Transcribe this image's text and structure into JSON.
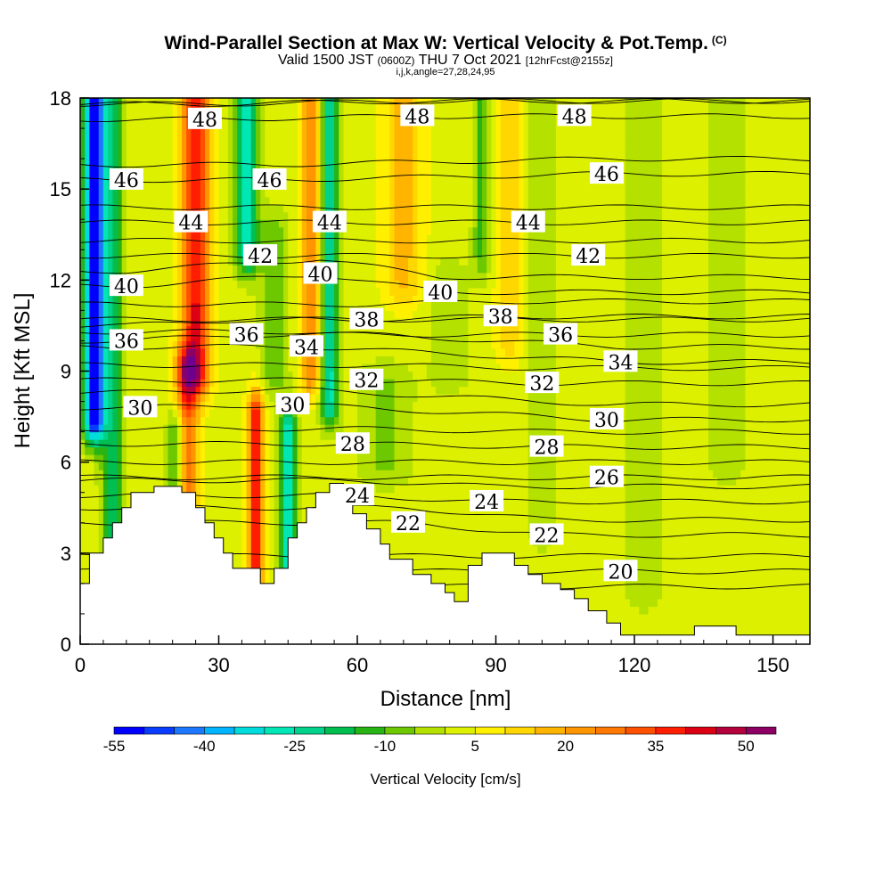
{
  "title": {
    "main": "Wind-Parallel Section at Max W: Vertical Velocity & Pot.Temp.",
    "copyright": "(C)",
    "sub_valid": "Valid 1500 JST",
    "sub_utc": "(0600Z)",
    "sub_date": "THU 7 Oct 2021",
    "sub_fcst": "[12hrFcst@2155z]",
    "indices": "i,j,k,angle=27,28,24,95"
  },
  "chart_data": {
    "type": "heatmap",
    "xlabel": "Distance [nm]",
    "ylabel": "Height [Kft MSL]",
    "xlim": [
      0,
      158
    ],
    "ylim": [
      0,
      18
    ],
    "x_ticks": [
      0,
      30,
      60,
      90,
      120,
      150
    ],
    "y_ticks": [
      0,
      3,
      6,
      9,
      12,
      15,
      18
    ],
    "colorbar": {
      "title": "Vertical Velocity [cm/s]",
      "levels": [
        -55,
        -50,
        -45,
        -40,
        -35,
        -30,
        -25,
        -20,
        -15,
        -10,
        -5,
        0,
        5,
        10,
        15,
        20,
        25,
        30,
        35,
        40,
        45,
        50,
        55
      ],
      "labels": [
        "-55",
        "-40",
        "-25",
        "-10",
        "5",
        "20",
        "35",
        "50"
      ],
      "colors": [
        "#0000ff",
        "#0a3cff",
        "#1e78ff",
        "#00b4ff",
        "#00dcdc",
        "#00e6b4",
        "#00d28c",
        "#00be50",
        "#28b414",
        "#6ec800",
        "#b4e100",
        "#dcf000",
        "#fff000",
        "#ffd700",
        "#ffb400",
        "#ff9600",
        "#ff7800",
        "#ff5000",
        "#ff1e00",
        "#dc0014",
        "#b4003c",
        "#8c0064",
        "#6e008c"
      ]
    },
    "theta_contour_labels": [
      {
        "v": 48,
        "x": 27,
        "y": 17.3
      },
      {
        "v": 48,
        "x": 73,
        "y": 17.4
      },
      {
        "v": 48,
        "x": 107,
        "y": 17.4
      },
      {
        "v": 46,
        "x": 10,
        "y": 15.3
      },
      {
        "v": 46,
        "x": 41,
        "y": 15.3
      },
      {
        "v": 46,
        "x": 114,
        "y": 15.5
      },
      {
        "v": 44,
        "x": 24,
        "y": 13.9
      },
      {
        "v": 44,
        "x": 54,
        "y": 13.9
      },
      {
        "v": 44,
        "x": 97,
        "y": 13.9
      },
      {
        "v": 42,
        "x": 39,
        "y": 12.8
      },
      {
        "v": 42,
        "x": 110,
        "y": 12.8
      },
      {
        "v": 40,
        "x": 10,
        "y": 11.8
      },
      {
        "v": 40,
        "x": 52,
        "y": 12.2
      },
      {
        "v": 40,
        "x": 78,
        "y": 11.6
      },
      {
        "v": 38,
        "x": 62,
        "y": 10.7
      },
      {
        "v": 38,
        "x": 91,
        "y": 10.8
      },
      {
        "v": 36,
        "x": 10,
        "y": 10.0
      },
      {
        "v": 36,
        "x": 36,
        "y": 10.2
      },
      {
        "v": 36,
        "x": 104,
        "y": 10.2
      },
      {
        "v": 34,
        "x": 49,
        "y": 9.8
      },
      {
        "v": 34,
        "x": 117,
        "y": 9.3
      },
      {
        "v": 32,
        "x": 62,
        "y": 8.7
      },
      {
        "v": 32,
        "x": 100,
        "y": 8.6
      },
      {
        "v": 30,
        "x": 13,
        "y": 7.8
      },
      {
        "v": 30,
        "x": 46,
        "y": 7.9
      },
      {
        "v": 30,
        "x": 114,
        "y": 7.4
      },
      {
        "v": 28,
        "x": 59,
        "y": 6.6
      },
      {
        "v": 28,
        "x": 101,
        "y": 6.5
      },
      {
        "v": 26,
        "x": 114,
        "y": 5.5
      },
      {
        "v": 24,
        "x": 60,
        "y": 4.9
      },
      {
        "v": 24,
        "x": 88,
        "y": 4.7
      },
      {
        "v": 22,
        "x": 71,
        "y": 4.0
      },
      {
        "v": 22,
        "x": 101,
        "y": 3.6
      },
      {
        "v": 20,
        "x": 117,
        "y": 2.4
      }
    ],
    "terrain_kft": [
      [
        0,
        2
      ],
      [
        2,
        2
      ],
      [
        2,
        3
      ],
      [
        5,
        3
      ],
      [
        5,
        3.5
      ],
      [
        7,
        3.5
      ],
      [
        7,
        4
      ],
      [
        9,
        4
      ],
      [
        9,
        4.5
      ],
      [
        11,
        4.5
      ],
      [
        11,
        5
      ],
      [
        16,
        5
      ],
      [
        16,
        5.2
      ],
      [
        22,
        5.2
      ],
      [
        22,
        5
      ],
      [
        25,
        5
      ],
      [
        25,
        4.5
      ],
      [
        27,
        4.5
      ],
      [
        27,
        4
      ],
      [
        29,
        4
      ],
      [
        29,
        3.5
      ],
      [
        31,
        3.5
      ],
      [
        31,
        3
      ],
      [
        33,
        3
      ],
      [
        33,
        2.5
      ],
      [
        39,
        2.5
      ],
      [
        39,
        2
      ],
      [
        42,
        2
      ],
      [
        42,
        2.5
      ],
      [
        45,
        2.5
      ],
      [
        45,
        3.5
      ],
      [
        47,
        3.5
      ],
      [
        47,
        4
      ],
      [
        49,
        4
      ],
      [
        49,
        4.5
      ],
      [
        51,
        4.5
      ],
      [
        51,
        5
      ],
      [
        54,
        5
      ],
      [
        54,
        5.3
      ],
      [
        57,
        5.3
      ],
      [
        57,
        4.8
      ],
      [
        59,
        4.8
      ],
      [
        59,
        4.3
      ],
      [
        62,
        4.3
      ],
      [
        62,
        3.8
      ],
      [
        65,
        3.8
      ],
      [
        65,
        3.3
      ],
      [
        67,
        3.3
      ],
      [
        67,
        2.8
      ],
      [
        72,
        2.8
      ],
      [
        72,
        2.3
      ],
      [
        76,
        2.3
      ],
      [
        76,
        2
      ],
      [
        79,
        2
      ],
      [
        79,
        1.7
      ],
      [
        81,
        1.7
      ],
      [
        81,
        1.4
      ],
      [
        84,
        1.4
      ],
      [
        84,
        2.6
      ],
      [
        87,
        2.6
      ],
      [
        87,
        3
      ],
      [
        94,
        3
      ],
      [
        94,
        2.6
      ],
      [
        97,
        2.6
      ],
      [
        97,
        2.3
      ],
      [
        100,
        2.3
      ],
      [
        100,
        2
      ],
      [
        104,
        2
      ],
      [
        104,
        1.8
      ],
      [
        107,
        1.8
      ],
      [
        107,
        1.5
      ],
      [
        110,
        1.5
      ],
      [
        110,
        1.1
      ],
      [
        114,
        1.1
      ],
      [
        114,
        0.7
      ],
      [
        117,
        0.7
      ],
      [
        117,
        0.3
      ],
      [
        133,
        0.3
      ],
      [
        133,
        0.6
      ],
      [
        142,
        0.6
      ],
      [
        142,
        0.3
      ],
      [
        158,
        0.3
      ]
    ]
  }
}
